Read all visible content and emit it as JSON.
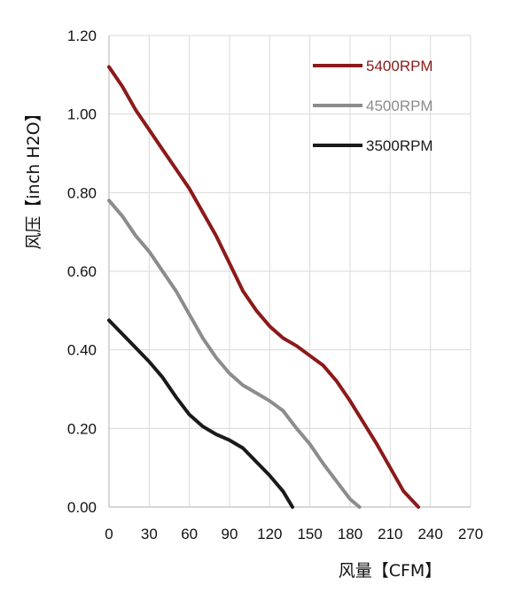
{
  "chart_data": {
    "type": "line",
    "xlabel": "风量【CFM】",
    "ylabel": "风压【inch H2O】",
    "xlim": [
      0,
      270
    ],
    "ylim": [
      0,
      1.2
    ],
    "x_ticks": [
      "0",
      "30",
      "60",
      "90",
      "120",
      "150",
      "180",
      "210",
      "240",
      "270"
    ],
    "y_ticks": [
      "0.00",
      "0.20",
      "0.40",
      "0.60",
      "0.80",
      "1.00",
      "1.20"
    ],
    "grid": true,
    "legend_position": "top-right",
    "series": [
      {
        "name": "5400RPM",
        "color": "#8b1a1a",
        "points": [
          [
            0,
            1.12
          ],
          [
            10,
            1.07
          ],
          [
            20,
            1.01
          ],
          [
            30,
            0.96
          ],
          [
            40,
            0.91
          ],
          [
            50,
            0.86
          ],
          [
            60,
            0.81
          ],
          [
            70,
            0.75
          ],
          [
            80,
            0.69
          ],
          [
            90,
            0.62
          ],
          [
            100,
            0.55
          ],
          [
            110,
            0.5
          ],
          [
            120,
            0.46
          ],
          [
            130,
            0.43
          ],
          [
            140,
            0.41
          ],
          [
            150,
            0.385
          ],
          [
            160,
            0.36
          ],
          [
            170,
            0.32
          ],
          [
            180,
            0.27
          ],
          [
            190,
            0.215
          ],
          [
            200,
            0.16
          ],
          [
            210,
            0.1
          ],
          [
            220,
            0.04
          ],
          [
            231,
            0.0
          ]
        ]
      },
      {
        "name": "4500RPM",
        "color": "#8c8c8c",
        "points": [
          [
            0,
            0.78
          ],
          [
            10,
            0.74
          ],
          [
            20,
            0.69
          ],
          [
            30,
            0.65
          ],
          [
            40,
            0.6
          ],
          [
            50,
            0.55
          ],
          [
            60,
            0.49
          ],
          [
            70,
            0.43
          ],
          [
            80,
            0.38
          ],
          [
            90,
            0.34
          ],
          [
            100,
            0.31
          ],
          [
            110,
            0.29
          ],
          [
            120,
            0.27
          ],
          [
            130,
            0.245
          ],
          [
            140,
            0.2
          ],
          [
            150,
            0.16
          ],
          [
            160,
            0.11
          ],
          [
            170,
            0.065
          ],
          [
            180,
            0.02
          ],
          [
            187,
            0.0
          ]
        ]
      },
      {
        "name": "3500RPM",
        "color": "#1a1a1a",
        "points": [
          [
            0,
            0.475
          ],
          [
            10,
            0.44
          ],
          [
            20,
            0.405
          ],
          [
            30,
            0.37
          ],
          [
            40,
            0.33
          ],
          [
            50,
            0.28
          ],
          [
            60,
            0.235
          ],
          [
            70,
            0.205
          ],
          [
            80,
            0.185
          ],
          [
            90,
            0.17
          ],
          [
            100,
            0.15
          ],
          [
            110,
            0.115
          ],
          [
            120,
            0.08
          ],
          [
            130,
            0.04
          ],
          [
            137,
            0.0
          ]
        ]
      }
    ]
  }
}
